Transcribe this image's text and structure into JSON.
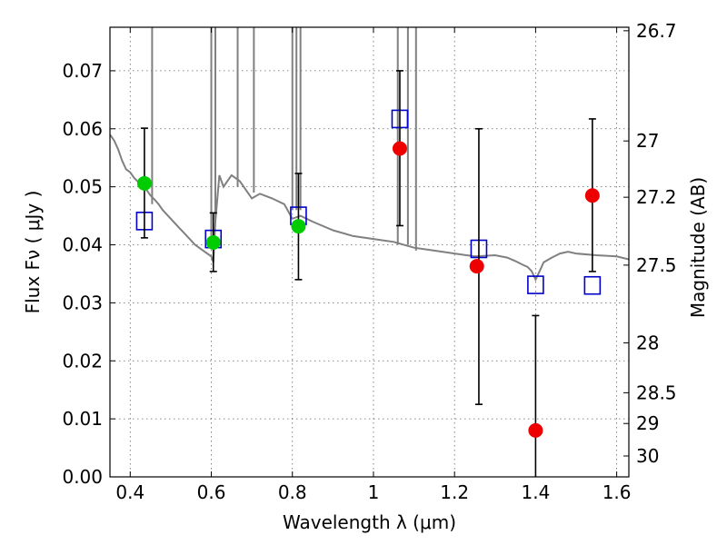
{
  "chart_data": {
    "type": "scatter",
    "xlabel": "Wavelength  λ (μm)",
    "ylabel": "Flux  Fν  ( μJy )",
    "ylabel_right": "Magnitude (AB)",
    "xlim": [
      0.35,
      1.63
    ],
    "ylim": [
      0.0,
      0.0775
    ],
    "grid": true,
    "x_ticks": [
      0.4,
      0.6,
      0.8,
      1.0,
      1.2,
      1.4,
      1.6
    ],
    "x_tick_labels": [
      "0.4",
      "0.6",
      "0.8",
      "1",
      "1.2",
      "1.4",
      "1.6"
    ],
    "y_ticks": [
      0.0,
      0.01,
      0.02,
      0.03,
      0.04,
      0.05,
      0.06,
      0.07
    ],
    "y_tick_labels": [
      "0.00",
      "0.01",
      "0.02",
      "0.03",
      "0.04",
      "0.05",
      "0.06",
      "0.07"
    ],
    "mag_ticks": [
      {
        "label": "26.7",
        "flux": 0.0769
      },
      {
        "label": "27",
        "flux": 0.0579
      },
      {
        "label": "27.2",
        "flux": 0.0482
      },
      {
        "label": "27.5",
        "flux": 0.0365
      },
      {
        "label": "28",
        "flux": 0.0231
      },
      {
        "label": "28.5",
        "flux": 0.0145
      },
      {
        "label": "29",
        "flux": 0.0092
      },
      {
        "label": "30",
        "flux": 0.0036
      }
    ],
    "series": [
      {
        "kind": "line",
        "color": "#808080",
        "x": [
          0.35,
          0.36,
          0.37,
          0.38,
          0.39,
          0.4,
          0.41,
          0.42,
          0.43,
          0.44,
          0.45,
          0.46,
          0.47,
          0.48,
          0.5,
          0.52,
          0.54,
          0.56,
          0.58,
          0.6,
          0.605,
          0.61,
          0.62,
          0.63,
          0.65,
          0.67,
          0.7,
          0.72,
          0.75,
          0.78,
          0.8,
          0.82,
          0.85,
          0.9,
          0.95,
          1.0,
          1.05,
          1.1,
          1.15,
          1.2,
          1.25,
          1.3,
          1.33,
          1.35,
          1.37,
          1.38,
          1.39,
          1.4,
          1.41,
          1.42,
          1.44,
          1.46,
          1.48,
          1.5,
          1.55,
          1.6,
          1.63
        ],
        "y": [
          0.059,
          0.058,
          0.0565,
          0.0545,
          0.053,
          0.0525,
          0.0515,
          0.0508,
          0.05,
          0.0495,
          0.0485,
          0.0478,
          0.047,
          0.046,
          0.0445,
          0.043,
          0.0415,
          0.04,
          0.039,
          0.038,
          0.037,
          0.044,
          0.052,
          0.05,
          0.052,
          0.051,
          0.048,
          0.0488,
          0.048,
          0.047,
          0.0445,
          0.045,
          0.044,
          0.0425,
          0.0415,
          0.041,
          0.0405,
          0.0395,
          0.039,
          0.0385,
          0.038,
          0.0382,
          0.0378,
          0.0372,
          0.0365,
          0.0362,
          0.0355,
          0.034,
          0.0355,
          0.037,
          0.0378,
          0.0385,
          0.0388,
          0.0385,
          0.0382,
          0.038,
          0.0375
        ]
      },
      {
        "kind": "line",
        "name_hidden": "emission-lines",
        "color": "#808080",
        "segments": [
          [
            0.454,
            0.047,
            0.0775
          ],
          [
            0.6,
            0.04,
            0.0775
          ],
          [
            0.61,
            0.044,
            0.0775
          ],
          [
            0.665,
            0.05,
            0.0775
          ],
          [
            0.705,
            0.049,
            0.0775
          ],
          [
            0.8,
            0.046,
            0.0775
          ],
          [
            0.81,
            0.046,
            0.0775
          ],
          [
            0.82,
            0.046,
            0.0775
          ],
          [
            1.06,
            0.04,
            0.0775
          ],
          [
            1.085,
            0.04,
            0.0775
          ],
          [
            1.105,
            0.039,
            0.0775
          ]
        ]
      },
      {
        "kind": "squares",
        "color": "#0000cc",
        "x": [
          0.435,
          0.605,
          0.815,
          1.065,
          1.26,
          1.4,
          1.54
        ],
        "y": [
          0.0441,
          0.041,
          0.045,
          0.0617,
          0.0393,
          0.0331,
          0.033
        ]
      },
      {
        "kind": "points",
        "color": "#00cc00",
        "x": [
          0.435,
          0.605,
          0.815
        ],
        "y": [
          0.0506,
          0.0404,
          0.0432
        ]
      },
      {
        "kind": "points",
        "color": "#ee0000",
        "x": [
          1.065,
          1.255,
          1.4,
          1.54
        ],
        "y": [
          0.0566,
          0.0363,
          0.008,
          0.0485
        ]
      },
      {
        "kind": "errorbars",
        "color": "#000000",
        "x": [
          0.435,
          0.605,
          0.815,
          1.065,
          1.26,
          1.4,
          1.54
        ],
        "ylow": [
          0.0412,
          0.0354,
          0.034,
          0.0433,
          0.0125,
          -0.001,
          0.0354
        ],
        "yhigh": [
          0.0601,
          0.0455,
          0.0523,
          0.07,
          0.06,
          0.0278,
          0.0617
        ]
      }
    ]
  }
}
